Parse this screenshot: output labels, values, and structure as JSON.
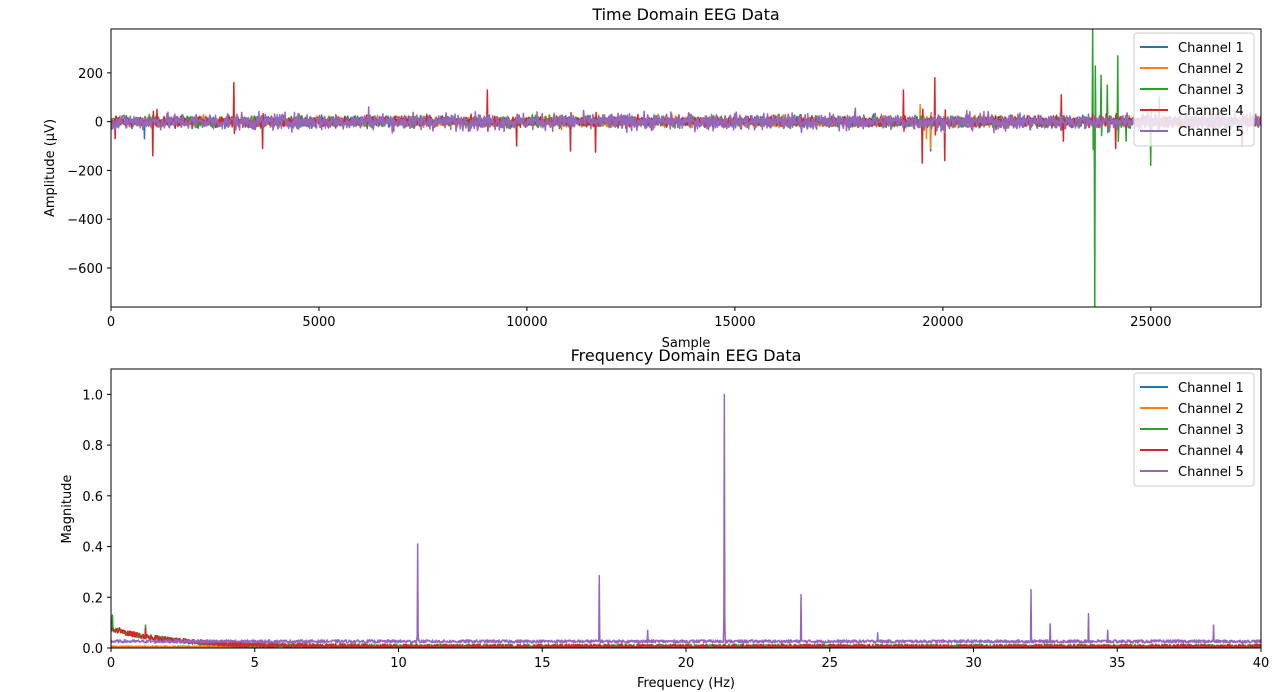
{
  "chart_data": [
    {
      "type": "line",
      "title": "Time Domain EEG Data",
      "xlabel": "Sample",
      "ylabel": "Amplitude (µV)",
      "xlim": [
        0,
        27648
      ],
      "ylim": [
        -760,
        380
      ],
      "xticks": [
        0,
        5000,
        10000,
        15000,
        20000,
        25000
      ],
      "xtick_labels": [
        "0",
        "5000",
        "10000",
        "15000",
        "20000",
        "25000"
      ],
      "yticks": [
        200,
        0,
        -200,
        -400,
        -600
      ],
      "ytick_labels": [
        "200",
        "0",
        "−200",
        "−400",
        "−600"
      ],
      "legend_position": "top-right",
      "grid": false,
      "noise_amplitude": 22,
      "series": [
        {
          "name": "Channel 1",
          "color": "#1f77b4",
          "events": [
            [
              800,
              -70
            ],
            [
              19500,
              -60
            ],
            [
              19700,
              -120
            ],
            [
              26500,
              -60
            ]
          ]
        },
        {
          "name": "Channel 2",
          "color": "#ff7f0e",
          "events": [
            [
              19450,
              70
            ],
            [
              19600,
              -70
            ],
            [
              19700,
              -110
            ],
            [
              26400,
              -70
            ]
          ]
        },
        {
          "name": "Channel 3",
          "color": "#2ca02c",
          "events": [
            [
              23600,
              380
            ],
            [
              23650,
              -760
            ],
            [
              23800,
              190
            ],
            [
              23950,
              150
            ],
            [
              24200,
              270
            ],
            [
              24400,
              -80
            ],
            [
              25000,
              -180
            ],
            [
              25200,
              100
            ]
          ]
        },
        {
          "name": "Channel 4",
          "color": "#d62728",
          "events": [
            [
              100,
              -70
            ],
            [
              1000,
              -140
            ],
            [
              1100,
              50
            ],
            [
              2950,
              160
            ],
            [
              3650,
              -110
            ],
            [
              9050,
              130
            ],
            [
              9750,
              -100
            ],
            [
              11050,
              -120
            ],
            [
              11650,
              -125
            ],
            [
              19050,
              130
            ],
            [
              19500,
              -170
            ],
            [
              19800,
              180
            ],
            [
              20050,
              -160
            ],
            [
              22850,
              110
            ],
            [
              22900,
              -80
            ],
            [
              24150,
              -110
            ],
            [
              27200,
              -100
            ]
          ]
        },
        {
          "name": "Channel 5",
          "color": "#9467bd",
          "events": [
            [
              6200,
              60
            ],
            [
              17900,
              55
            ]
          ]
        }
      ]
    },
    {
      "type": "line",
      "title": "Frequency Domain EEG Data",
      "xlabel": "Frequency (Hz)",
      "ylabel": "Magnitude",
      "xlim": [
        0,
        40
      ],
      "ylim": [
        0,
        1.1
      ],
      "xticks": [
        0,
        5,
        10,
        15,
        20,
        25,
        30,
        35,
        40
      ],
      "xtick_labels": [
        "0",
        "5",
        "10",
        "15",
        "20",
        "25",
        "30",
        "35",
        "40"
      ],
      "yticks": [
        0,
        0.2,
        0.4,
        0.6,
        0.8,
        1.0
      ],
      "ytick_labels": [
        "0.0",
        "0.2",
        "0.4",
        "0.6",
        "0.8",
        "1.0"
      ],
      "legend_position": "top-right",
      "grid": false,
      "noise_floor": 0.02,
      "series": [
        {
          "name": "Channel 1",
          "color": "#1f77b4",
          "peaks": []
        },
        {
          "name": "Channel 2",
          "color": "#ff7f0e",
          "peaks": []
        },
        {
          "name": "Channel 3",
          "color": "#2ca02c",
          "peaks": [
            [
              0.05,
              0.13
            ],
            [
              1.2,
              0.09
            ]
          ]
        },
        {
          "name": "Channel 4",
          "color": "#d62728",
          "peaks": [
            [
              0.3,
              0.08
            ],
            [
              1.2,
              0.08
            ]
          ]
        },
        {
          "name": "Channel 5",
          "color": "#9467bd",
          "peaks": [
            [
              10.67,
              0.41
            ],
            [
              16.99,
              0.285
            ],
            [
              18.67,
              0.07
            ],
            [
              21.33,
              1.0
            ],
            [
              24.0,
              0.21
            ],
            [
              26.67,
              0.06
            ],
            [
              32.0,
              0.23
            ],
            [
              32.67,
              0.095
            ],
            [
              34.0,
              0.135
            ],
            [
              34.67,
              0.07
            ],
            [
              38.35,
              0.09
            ]
          ]
        }
      ]
    }
  ]
}
